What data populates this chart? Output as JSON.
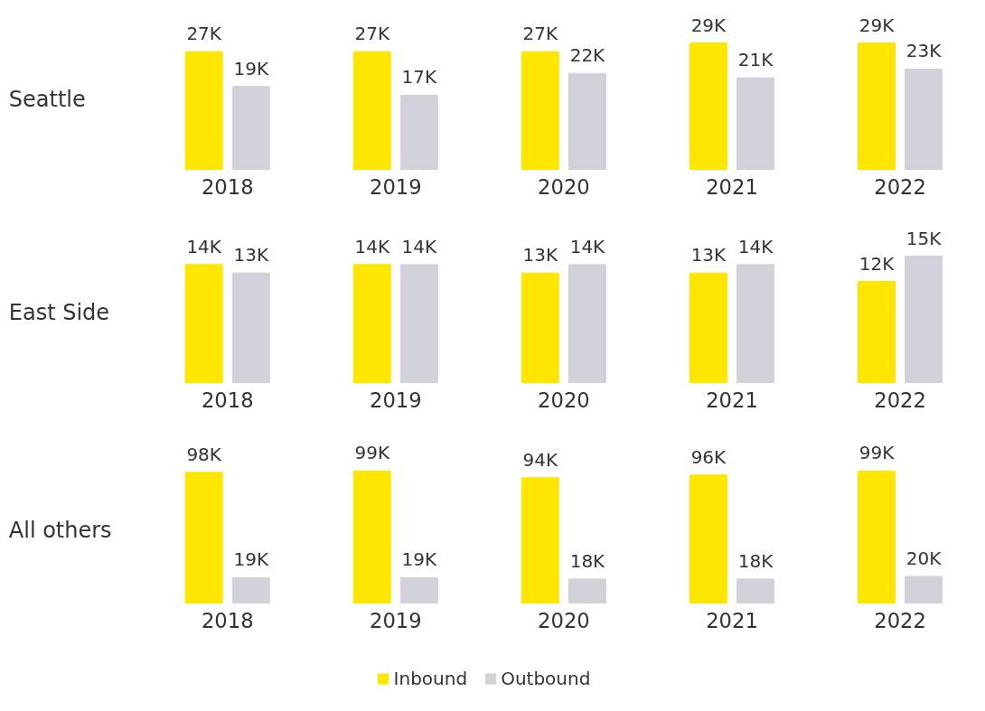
{
  "chart_data": [
    {
      "type": "bar",
      "title": "Seattle",
      "categories": [
        "2018",
        "2019",
        "2020",
        "2021",
        "2022"
      ],
      "legend": false,
      "series": [
        {
          "color": "#ffe600",
          "values": [
            27000,
            27000,
            27000,
            29000,
            29000
          ],
          "value_labels": [
            "27K",
            "27K",
            "27K",
            "29K",
            "29K"
          ]
        },
        {
          "color": "#d1d1d9",
          "values": [
            19000,
            17000,
            22000,
            21000,
            23000
          ],
          "value_labels": [
            "19K",
            "17K",
            "22K",
            "21K",
            "23K"
          ]
        }
      ]
    },
    {
      "type": "bar",
      "title": "East Side",
      "categories": [
        "2018",
        "2019",
        "2020",
        "2021",
        "2022"
      ],
      "legend": false,
      "series": [
        {
          "color": "#ffe600",
          "values": [
            14000,
            14000,
            13000,
            13000,
            12000
          ],
          "value_labels": [
            "14K",
            "14K",
            "13K",
            "13K",
            "12K"
          ]
        },
        {
          "color": "#d1d1d9",
          "values": [
            13000,
            14000,
            14000,
            14000,
            15000
          ],
          "value_labels": [
            "13K",
            "14K",
            "14K",
            "14K",
            "15K"
          ]
        }
      ]
    },
    {
      "type": "bar",
      "title": "All others",
      "categories": [
        "2018",
        "2019",
        "2020",
        "2021",
        "2022"
      ],
      "legend": "bottom",
      "series": [
        {
          "name": "Inbound",
          "color": "#ffe600",
          "values": [
            98000,
            99000,
            94000,
            96000,
            99000
          ],
          "value_labels": [
            "98K",
            "99K",
            "94K",
            "96K",
            "99K"
          ]
        },
        {
          "name": "Outbound",
          "color": "#d1d1d9",
          "values": [
            19000,
            19000,
            18000,
            18000,
            20000
          ],
          "value_labels": [
            "19K",
            "19K",
            "18K",
            "18K",
            "20K"
          ]
        }
      ]
    }
  ]
}
